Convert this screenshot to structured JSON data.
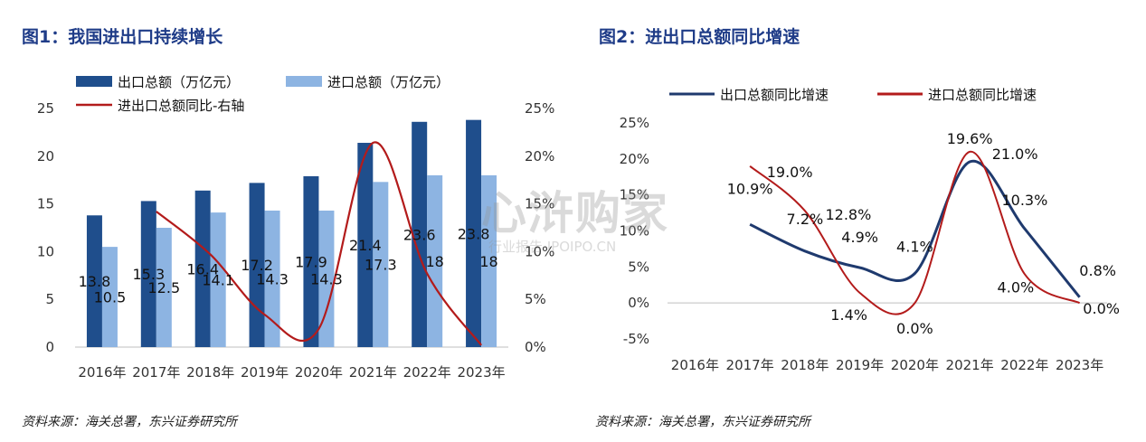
{
  "left": {
    "title": "图1：我国进出口持续增长",
    "source": "资料来源：海关总署，东兴证券研究所"
  },
  "right": {
    "title": "图2：进出口总额同比增速",
    "source": "资料来源：海关总署，东兴证券研究所"
  },
  "watermark": {
    "main": "心浒购家",
    "sub": "行业报告 IPOIPO.CN"
  },
  "colors": {
    "title": "#1f3c88",
    "export_bar": "#1f4e8c",
    "import_bar": "#8db4e2",
    "yoy_line": "#b31b1b",
    "export_line": "#1f3a6e",
    "import_line": "#b31b1b"
  },
  "chart_data": [
    {
      "type": "bar",
      "categories": [
        "2016年",
        "2017年",
        "2018年",
        "2019年",
        "2020年",
        "2021年",
        "2022年",
        "2023年"
      ],
      "series": [
        {
          "name": "出口总额（万亿元）",
          "values": [
            13.8,
            15.3,
            16.4,
            17.2,
            17.9,
            21.4,
            23.6,
            23.8
          ],
          "labels": [
            "13.8",
            "15.3",
            "16.4",
            "17.2",
            "17.9",
            "21.4",
            "23.6",
            "23.8"
          ]
        },
        {
          "name": "进口总额（万亿元）",
          "values": [
            10.5,
            12.5,
            14.1,
            14.3,
            14.3,
            17.3,
            18,
            18
          ],
          "labels": [
            "10.5",
            "12.5",
            "14.1",
            "14.3",
            "14.3",
            "17.3",
            "18",
            "18"
          ]
        },
        {
          "name": "进出口总额同比-右轴",
          "type": "line",
          "axis": "right",
          "values": [
            null,
            14.2,
            9.7,
            3.4,
            1.9,
            21.4,
            7.7,
            0.2
          ]
        }
      ],
      "y_ticks": [
        "0",
        "5",
        "10",
        "15",
        "20",
        "25"
      ],
      "ylim": [
        0,
        25
      ],
      "y2_ticks": [
        "0%",
        "5%",
        "10%",
        "15%",
        "20%",
        "25%"
      ],
      "y2lim": [
        0,
        25
      ],
      "legend_position": "top",
      "grid": false
    },
    {
      "type": "line",
      "categories": [
        "2016年",
        "2017年",
        "2018年",
        "2019年",
        "2020年",
        "2021年",
        "2022年",
        "2023年"
      ],
      "series": [
        {
          "name": "出口总额同比增速",
          "values": [
            null,
            10.9,
            7.2,
            4.9,
            4.1,
            19.6,
            10.3,
            0.8
          ],
          "labels": [
            "",
            "10.9%",
            "7.2%",
            "4.9%",
            "4.1%",
            "19.6%",
            "10.3%",
            "0.8%"
          ]
        },
        {
          "name": "进口总额同比增速",
          "values": [
            null,
            19.0,
            12.8,
            1.4,
            0.0,
            21.0,
            4.0,
            0.0
          ],
          "labels": [
            "",
            "19.0%",
            "12.8%",
            "1.4%",
            "0.0%",
            "21.0%",
            "4.0%",
            "0.0%"
          ]
        }
      ],
      "y_ticks": [
        "-5%",
        "0%",
        "5%",
        "10%",
        "15%",
        "20%",
        "25%"
      ],
      "ylim": [
        -5,
        25
      ],
      "legend_position": "top",
      "grid": false
    }
  ]
}
